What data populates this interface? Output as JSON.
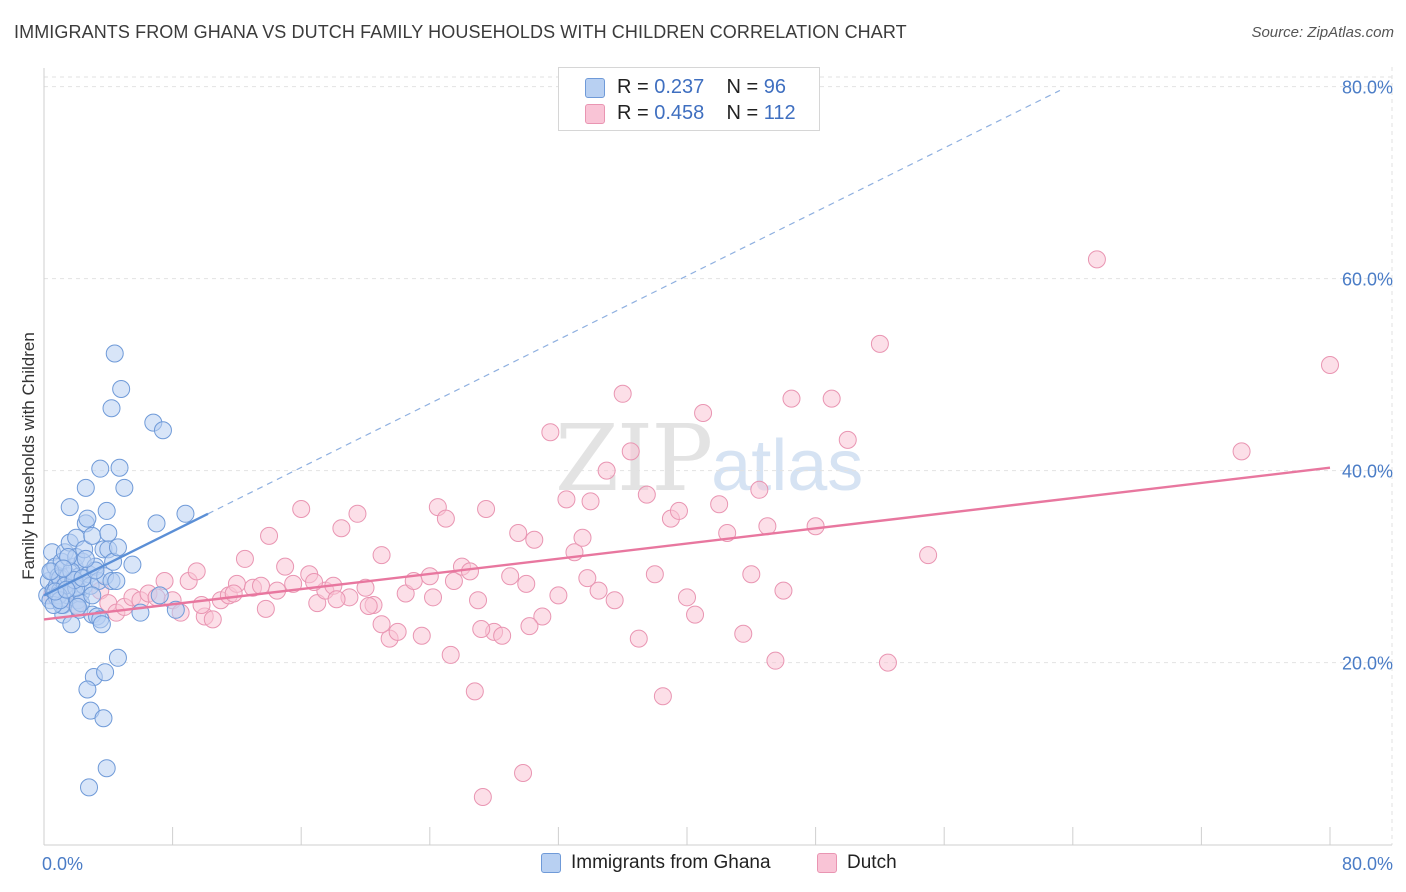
{
  "title": "IMMIGRANTS FROM GHANA VS DUTCH FAMILY HOUSEHOLDS WITH CHILDREN CORRELATION CHART",
  "source": "Source: ZipAtlas.com",
  "watermark": {
    "zip": "ZIP",
    "atlas": "atlas"
  },
  "legend": {
    "r_label": "R =",
    "n_label": "N =",
    "series": [
      {
        "name": "Immigrants from Ghana",
        "r": "0.237",
        "n": "96",
        "fill": "#b8d0f2",
        "stroke": "#6f9ad8"
      },
      {
        "name": "Dutch",
        "r": "0.458",
        "n": "112",
        "fill": "#f9c4d6",
        "stroke": "#e995b2"
      }
    ]
  },
  "chart_data": {
    "type": "scatter",
    "title": "IMMIGRANTS FROM GHANA VS DUTCH FAMILY HOUSEHOLDS WITH CHILDREN CORRELATION CHART",
    "xlabel": "",
    "ylabel": "Family Households with Children",
    "xlim": [
      0,
      80
    ],
    "ylim": [
      1,
      81
    ],
    "x_tick_labels": [
      "0.0%",
      "80.0%"
    ],
    "y_ticks": [
      20,
      40,
      60,
      80
    ],
    "y_tick_labels": [
      "20.0%",
      "40.0%",
      "60.0%",
      "80.0%"
    ],
    "grid": true,
    "series": [
      {
        "name": "Immigrants from Ghana",
        "color": "#5b8fd6",
        "trend": {
          "x0": 0,
          "y0": 27.0,
          "x1": 10.2,
          "y1": 35.5,
          "dash_to_x": 63.2,
          "dash_to_y": 79.6
        },
        "points": [
          [
            0.2,
            27.0
          ],
          [
            0.3,
            28.5
          ],
          [
            0.4,
            26.5
          ],
          [
            0.5,
            29.5
          ],
          [
            0.5,
            31.5
          ],
          [
            0.6,
            27.5
          ],
          [
            0.7,
            30.0
          ],
          [
            0.8,
            28.0
          ],
          [
            0.8,
            26.8
          ],
          [
            0.9,
            29.0
          ],
          [
            1.0,
            27.5
          ],
          [
            1.0,
            28.8
          ],
          [
            1.1,
            30.5
          ],
          [
            1.2,
            26.0
          ],
          [
            1.2,
            25.0
          ],
          [
            1.3,
            31.5
          ],
          [
            1.4,
            28.2
          ],
          [
            1.5,
            29.0
          ],
          [
            1.5,
            27.0
          ],
          [
            1.6,
            32.5
          ],
          [
            1.6,
            36.2
          ],
          [
            1.7,
            24.0
          ],
          [
            1.8,
            28.5
          ],
          [
            1.8,
            27.5
          ],
          [
            1.9,
            30.0
          ],
          [
            2.0,
            31.0
          ],
          [
            2.0,
            33.0
          ],
          [
            2.1,
            26.5
          ],
          [
            2.2,
            29.0
          ],
          [
            2.2,
            25.5
          ],
          [
            2.3,
            27.2
          ],
          [
            2.4,
            30.5
          ],
          [
            2.5,
            28.0
          ],
          [
            2.5,
            31.8
          ],
          [
            2.6,
            34.5
          ],
          [
            2.6,
            38.2
          ],
          [
            2.7,
            35.0
          ],
          [
            2.8,
            29.2
          ],
          [
            2.9,
            28.0
          ],
          [
            3.0,
            33.2
          ],
          [
            3.0,
            25.0
          ],
          [
            3.1,
            18.5
          ],
          [
            3.2,
            30.0
          ],
          [
            3.3,
            24.8
          ],
          [
            3.4,
            28.5
          ],
          [
            3.5,
            24.5
          ],
          [
            3.5,
            40.2
          ],
          [
            3.6,
            24.0
          ],
          [
            3.7,
            31.8
          ],
          [
            3.8,
            29.0
          ],
          [
            3.8,
            19.0
          ],
          [
            3.9,
            35.8
          ],
          [
            4.0,
            33.5
          ],
          [
            4.0,
            31.8
          ],
          [
            4.2,
            46.5
          ],
          [
            4.2,
            28.5
          ],
          [
            4.3,
            30.5
          ],
          [
            4.4,
            52.2
          ],
          [
            4.5,
            28.5
          ],
          [
            4.6,
            32.0
          ],
          [
            4.7,
            40.3
          ],
          [
            4.8,
            48.5
          ],
          [
            5.0,
            38.2
          ],
          [
            5.5,
            30.2
          ],
          [
            6.0,
            25.2
          ],
          [
            6.8,
            45.0
          ],
          [
            7.0,
            34.5
          ],
          [
            7.2,
            27.0
          ],
          [
            7.4,
            44.2
          ],
          [
            8.2,
            25.5
          ],
          [
            8.8,
            35.5
          ],
          [
            2.7,
            17.2
          ],
          [
            2.9,
            15.0
          ],
          [
            3.7,
            14.2
          ],
          [
            3.9,
            9.0
          ],
          [
            2.8,
            7.0
          ],
          [
            4.6,
            20.5
          ],
          [
            1.3,
            28.0
          ],
          [
            1.7,
            29.5
          ],
          [
            0.9,
            27.0
          ],
          [
            1.1,
            26.0
          ],
          [
            2.3,
            26.2
          ],
          [
            3.0,
            27.0
          ],
          [
            1.5,
            31.0
          ],
          [
            0.6,
            26.0
          ],
          [
            2.0,
            27.8
          ],
          [
            1.9,
            28.6
          ],
          [
            0.4,
            29.5
          ],
          [
            1.2,
            29.8
          ],
          [
            2.4,
            28.8
          ],
          [
            3.2,
            29.6
          ],
          [
            1.0,
            26.5
          ],
          [
            0.7,
            27.4
          ],
          [
            2.6,
            30.8
          ],
          [
            1.4,
            27.6
          ],
          [
            2.1,
            25.8
          ]
        ]
      },
      {
        "name": "Dutch",
        "color": "#e8779f",
        "trend": {
          "x0": 0,
          "y0": 24.5,
          "x1": 80,
          "y1": 40.3
        },
        "points": [
          [
            0.5,
            27.0
          ],
          [
            1.2,
            28.0
          ],
          [
            2.0,
            26.0
          ],
          [
            3.5,
            27.5
          ],
          [
            4.0,
            26.2
          ],
          [
            4.5,
            25.2
          ],
          [
            5.0,
            25.8
          ],
          [
            5.5,
            26.8
          ],
          [
            6.0,
            26.5
          ],
          [
            6.5,
            27.2
          ],
          [
            7.0,
            26.8
          ],
          [
            7.5,
            28.5
          ],
          [
            8.0,
            26.5
          ],
          [
            8.5,
            25.2
          ],
          [
            9.0,
            28.5
          ],
          [
            9.5,
            29.5
          ],
          [
            10.0,
            24.8
          ],
          [
            10.5,
            24.5
          ],
          [
            11.0,
            26.5
          ],
          [
            11.5,
            27.0
          ],
          [
            12.0,
            28.2
          ],
          [
            12.5,
            30.8
          ],
          [
            13.0,
            27.8
          ],
          [
            13.5,
            28.0
          ],
          [
            14.0,
            33.2
          ],
          [
            14.5,
            27.5
          ],
          [
            15.0,
            30.0
          ],
          [
            15.5,
            28.2
          ],
          [
            16.0,
            36.0
          ],
          [
            16.5,
            29.2
          ],
          [
            17.0,
            26.2
          ],
          [
            17.5,
            27.5
          ],
          [
            18.0,
            28.0
          ],
          [
            18.5,
            34.0
          ],
          [
            19.0,
            26.8
          ],
          [
            19.5,
            35.5
          ],
          [
            20.0,
            27.8
          ],
          [
            20.5,
            26.0
          ],
          [
            21.0,
            31.2
          ],
          [
            21.5,
            22.5
          ],
          [
            22.0,
            23.2
          ],
          [
            22.5,
            27.2
          ],
          [
            23.0,
            28.5
          ],
          [
            23.5,
            22.8
          ],
          [
            24.0,
            29.0
          ],
          [
            24.5,
            36.2
          ],
          [
            25.0,
            35.0
          ],
          [
            25.5,
            28.5
          ],
          [
            26.0,
            30.0
          ],
          [
            26.5,
            29.5
          ],
          [
            27.0,
            26.5
          ],
          [
            27.5,
            36.0
          ],
          [
            28.0,
            23.2
          ],
          [
            28.5,
            22.8
          ],
          [
            29.0,
            29.0
          ],
          [
            29.5,
            33.5
          ],
          [
            30.0,
            28.2
          ],
          [
            30.5,
            32.8
          ],
          [
            31.0,
            24.8
          ],
          [
            31.5,
            44.0
          ],
          [
            32.0,
            27.0
          ],
          [
            32.5,
            37.0
          ],
          [
            33.0,
            31.5
          ],
          [
            33.5,
            33.0
          ],
          [
            34.0,
            36.8
          ],
          [
            34.5,
            27.5
          ],
          [
            35.0,
            40.0
          ],
          [
            35.5,
            26.5
          ],
          [
            36.0,
            48.0
          ],
          [
            36.5,
            42.0
          ],
          [
            37.0,
            22.5
          ],
          [
            37.5,
            37.5
          ],
          [
            38.0,
            29.2
          ],
          [
            38.5,
            16.5
          ],
          [
            39.0,
            35.0
          ],
          [
            39.5,
            35.8
          ],
          [
            40.0,
            26.8
          ],
          [
            40.5,
            25.0
          ],
          [
            41.0,
            46.0
          ],
          [
            42.0,
            36.5
          ],
          [
            42.5,
            33.5
          ],
          [
            43.5,
            23.0
          ],
          [
            44.0,
            29.2
          ],
          [
            44.5,
            38.0
          ],
          [
            45.0,
            34.2
          ],
          [
            45.5,
            20.2
          ],
          [
            46.0,
            27.5
          ],
          [
            46.5,
            47.5
          ],
          [
            48.0,
            34.2
          ],
          [
            49.0,
            47.5
          ],
          [
            50.0,
            43.2
          ],
          [
            52.0,
            53.2
          ],
          [
            52.5,
            20.0
          ],
          [
            55.0,
            31.2
          ],
          [
            65.5,
            62.0
          ],
          [
            74.5,
            42.0
          ],
          [
            80.0,
            51.0
          ],
          [
            33.8,
            28.8
          ],
          [
            18.2,
            26.6
          ],
          [
            21.0,
            24.0
          ],
          [
            27.2,
            23.5
          ],
          [
            25.3,
            20.8
          ],
          [
            30.2,
            23.8
          ],
          [
            26.8,
            17.0
          ],
          [
            29.8,
            8.5
          ],
          [
            27.3,
            6.0
          ],
          [
            13.8,
            25.6
          ],
          [
            9.8,
            26.0
          ],
          [
            24.2,
            26.8
          ],
          [
            16.8,
            28.4
          ],
          [
            11.8,
            27.2
          ],
          [
            20.2,
            25.9
          ]
        ]
      }
    ]
  }
}
